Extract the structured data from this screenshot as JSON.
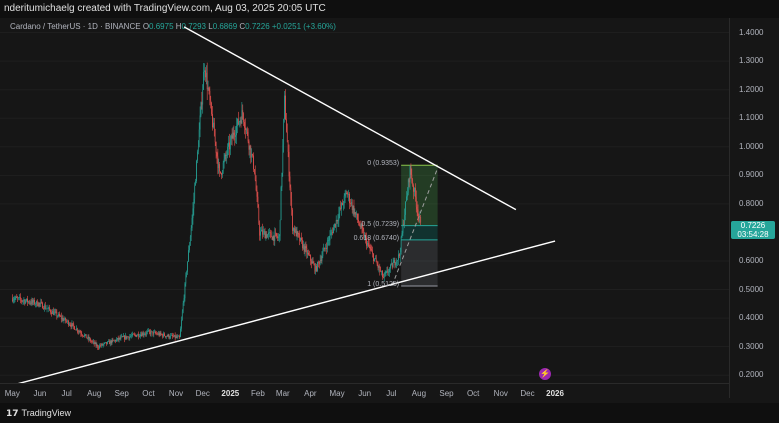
{
  "header": {
    "text": "nderitumichaelg created with TradingView.com, Aug 03, 2025 20:05 UTC"
  },
  "symbol": {
    "name": "Cardano / TetherUS · 1D · BINANCE",
    "open_label": "O",
    "open": "0.6975",
    "high_label": "H",
    "high": "0.7293",
    "low_label": "L",
    "low": "0.6869",
    "close_label": "C",
    "close": "0.7226",
    "change": "+0.0251 (+3.60%)"
  },
  "price_axis": [
    "1.4000",
    "1.3000",
    "1.2000",
    "1.1000",
    "1.0000",
    "0.9000",
    "0.8000",
    "0.6000",
    "0.5000",
    "0.4000",
    "0.3000",
    "0.2000"
  ],
  "current_price": {
    "value": "0.7226",
    "countdown": "03:54:28"
  },
  "time_axis": [
    {
      "label": "May"
    },
    {
      "label": "Jun"
    },
    {
      "label": "Jul"
    },
    {
      "label": "Aug"
    },
    {
      "label": "Sep"
    },
    {
      "label": "Oct"
    },
    {
      "label": "Nov"
    },
    {
      "label": "Dec"
    },
    {
      "label": "2025",
      "bold": true
    },
    {
      "label": "Feb"
    },
    {
      "label": "Mar"
    },
    {
      "label": "Apr"
    },
    {
      "label": "May"
    },
    {
      "label": "Jun"
    },
    {
      "label": "Jul"
    },
    {
      "label": "Aug"
    },
    {
      "label": "Sep"
    },
    {
      "label": "Oct"
    },
    {
      "label": "Nov"
    },
    {
      "label": "Dec"
    },
    {
      "label": "2026",
      "bold": true
    }
  ],
  "fib": [
    {
      "label": "0 (0.9353)",
      "level": 0.9353
    },
    {
      "label": "0.5 (0.7239)",
      "level": 0.7239
    },
    {
      "label": "0.618 (0.6740)",
      "level": 0.674
    },
    {
      "label": "1 (0.5125)",
      "level": 0.5125
    }
  ],
  "footer": {
    "brand": "TradingView",
    "logo_glyph": "17"
  },
  "colors": {
    "up": "#26a69a",
    "down": "#ef5350",
    "bg": "#161616",
    "line": "#ffffff"
  },
  "chart_data": {
    "type": "candlestick",
    "symbol": "ADA/USDT",
    "interval": "1D",
    "y_range": [
      0.2,
      1.42
    ],
    "price_path": [
      [
        "2024-05-01",
        0.47
      ],
      [
        "2024-06-01",
        0.45
      ],
      [
        "2024-07-05",
        0.38
      ],
      [
        "2024-08-05",
        0.3
      ],
      [
        "2024-09-01",
        0.33
      ],
      [
        "2024-10-01",
        0.35
      ],
      [
        "2024-11-05",
        0.33
      ],
      [
        "2024-11-20",
        0.78
      ],
      [
        "2024-12-03",
        1.29
      ],
      [
        "2024-12-20",
        0.9
      ],
      [
        "2025-01-05",
        1.05
      ],
      [
        "2025-01-15",
        1.12
      ],
      [
        "2025-01-28",
        0.92
      ],
      [
        "2025-02-03",
        0.7
      ],
      [
        "2025-02-25",
        0.68
      ],
      [
        "2025-03-03",
        1.16
      ],
      [
        "2025-03-12",
        0.72
      ],
      [
        "2025-04-07",
        0.57
      ],
      [
        "2025-04-25",
        0.7
      ],
      [
        "2025-05-12",
        0.84
      ],
      [
        "2025-06-01",
        0.68
      ],
      [
        "2025-06-22",
        0.54
      ],
      [
        "2025-07-10",
        0.62
      ],
      [
        "2025-07-22",
        0.92
      ],
      [
        "2025-08-03",
        0.7226
      ]
    ],
    "trendlines": [
      {
        "name": "descending",
        "from": [
          "2024-11-10",
          1.42
        ],
        "to": [
          "2025-11-18",
          0.78
        ]
      },
      {
        "name": "ascending",
        "from": [
          "2024-04-25",
          0.16
        ],
        "to": [
          "2026-01-01",
          0.67
        ]
      }
    ]
  }
}
